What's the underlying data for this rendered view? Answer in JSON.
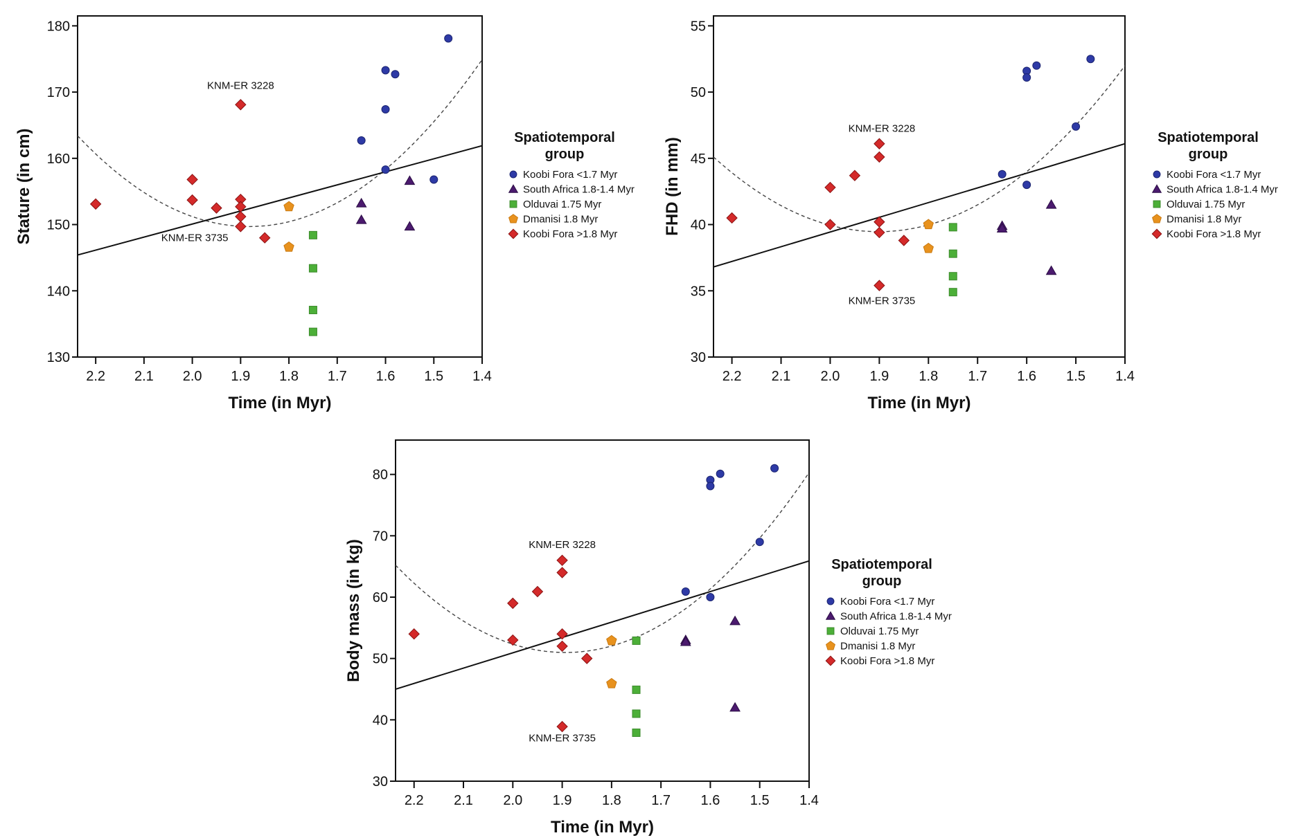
{
  "chart_data": [
    {
      "type": "scatter",
      "id": "stature",
      "title": "",
      "xlabel": "Time (in Myr)",
      "ylabel": "Stature (in cm)",
      "xlim": [
        2.2375,
        1.4
      ],
      "ylim": [
        130,
        181.5
      ],
      "x_reversed": true,
      "xticks": [
        2.2,
        2.1,
        2.0,
        1.9,
        1.8,
        1.7,
        1.6,
        1.5,
        1.4
      ],
      "xtick_labels": [
        "2.2",
        "2.1",
        "2.0",
        "1.9",
        "1.8",
        "1.7",
        "1.6",
        "1.5",
        "1.4"
      ],
      "yticks": [
        130,
        140,
        150,
        160,
        170,
        180
      ],
      "ytick_labels": [
        "130",
        "140",
        "150",
        "160",
        "170",
        "180"
      ],
      "grid": false,
      "legend": {
        "title_line1": "Spatiotemporal",
        "title_line2": "group",
        "placement": "right"
      },
      "series": [
        {
          "name": "Koobi Fora <1.7 Myr",
          "marker": "circle",
          "color": "#2e3aa6",
          "points": [
            [
              1.47,
              178.1
            ],
            [
              1.6,
              173.3
            ],
            [
              1.58,
              172.7
            ],
            [
              1.6,
              167.4
            ],
            [
              1.65,
              162.7
            ],
            [
              1.6,
              158.3
            ],
            [
              1.5,
              156.8
            ]
          ]
        },
        {
          "name": "South Africa 1.8-1.4 Myr",
          "marker": "triangle",
          "color": "#4b1a6e",
          "points": [
            [
              1.55,
              156.6
            ],
            [
              1.65,
              153.2
            ],
            [
              1.65,
              150.7
            ],
            [
              1.55,
              149.7
            ]
          ]
        },
        {
          "name": "Olduvai 1.75 Myr",
          "marker": "square",
          "color": "#4caf38",
          "points": [
            [
              1.75,
              148.4
            ],
            [
              1.75,
              143.4
            ],
            [
              1.75,
              137.1
            ],
            [
              1.75,
              133.8
            ]
          ]
        },
        {
          "name": "Dmanisi 1.8 Myr",
          "marker": "pentagon",
          "color": "#e8921e",
          "points": [
            [
              1.8,
              152.7
            ],
            [
              1.8,
              146.6
            ]
          ]
        },
        {
          "name": "Koobi Fora >1.8 Myr",
          "marker": "diamond",
          "color": "#d42a2a",
          "points": [
            [
              2.2,
              153.1
            ],
            [
              2.0,
              156.8
            ],
            [
              2.0,
              153.7
            ],
            [
              1.95,
              152.5
            ],
            [
              1.9,
              168.1
            ],
            [
              1.9,
              153.8
            ],
            [
              1.9,
              152.7
            ],
            [
              1.9,
              151.2
            ],
            [
              1.9,
              149.7
            ],
            [
              1.85,
              148.0
            ]
          ]
        }
      ],
      "linear_fit": {
        "x": [
          2.2375,
          1.4
        ],
        "y": [
          145.4,
          161.9
        ]
      },
      "quadratic_fit": {
        "x": [
          2.2375,
          1.88,
          1.4
        ],
        "y": [
          163.4,
          149.7,
          174.9
        ]
      },
      "annotations": [
        {
          "text": "KNM-ER 3228",
          "x": 1.9,
          "y": 170.5
        },
        {
          "text": "KNM-ER 3735",
          "x": 1.995,
          "y": 147.5
        }
      ]
    },
    {
      "type": "scatter",
      "id": "fhd",
      "title": "",
      "xlabel": "Time (in Myr)",
      "ylabel": "FHD (in mm)",
      "xlim": [
        2.2375,
        1.4
      ],
      "ylim": [
        30,
        55.75
      ],
      "x_reversed": true,
      "xticks": [
        2.2,
        2.1,
        2.0,
        1.9,
        1.8,
        1.7,
        1.6,
        1.5,
        1.4
      ],
      "xtick_labels": [
        "2.2",
        "2.1",
        "2.0",
        "1.9",
        "1.8",
        "1.7",
        "1.6",
        "1.5",
        "1.4"
      ],
      "yticks": [
        30,
        35,
        40,
        45,
        50,
        55
      ],
      "ytick_labels": [
        "30",
        "35",
        "40",
        "45",
        "50",
        "55"
      ],
      "grid": false,
      "legend": {
        "title_line1": "Spatiotemporal",
        "title_line2": "group",
        "placement": "right"
      },
      "series": [
        {
          "name": "Koobi Fora <1.7 Myr",
          "marker": "circle",
          "color": "#2e3aa6",
          "points": [
            [
              1.47,
              52.5
            ],
            [
              1.58,
              52.0
            ],
            [
              1.6,
              51.6
            ],
            [
              1.6,
              51.1
            ],
            [
              1.5,
              47.4
            ],
            [
              1.65,
              43.8
            ],
            [
              1.6,
              43.0
            ]
          ]
        },
        {
          "name": "South Africa 1.8-1.4 Myr",
          "marker": "triangle",
          "color": "#4b1a6e",
          "points": [
            [
              1.55,
              41.5
            ],
            [
              1.65,
              39.9
            ],
            [
              1.65,
              39.7
            ],
            [
              1.55,
              36.5
            ]
          ]
        },
        {
          "name": "Olduvai 1.75 Myr",
          "marker": "square",
          "color": "#4caf38",
          "points": [
            [
              1.75,
              39.8
            ],
            [
              1.75,
              37.8
            ],
            [
              1.75,
              36.1
            ],
            [
              1.75,
              34.9
            ]
          ]
        },
        {
          "name": "Dmanisi 1.8 Myr",
          "marker": "pentagon",
          "color": "#e8921e",
          "points": [
            [
              1.8,
              40.0
            ],
            [
              1.8,
              38.2
            ]
          ]
        },
        {
          "name": "Koobi Fora >1.8 Myr",
          "marker": "diamond",
          "color": "#d42a2a",
          "points": [
            [
              2.2,
              40.5
            ],
            [
              2.0,
              42.8
            ],
            [
              2.0,
              40.0
            ],
            [
              1.95,
              43.7
            ],
            [
              1.9,
              46.1
            ],
            [
              1.9,
              45.1
            ],
            [
              1.9,
              40.2
            ],
            [
              1.9,
              39.4
            ],
            [
              1.9,
              35.4
            ],
            [
              1.85,
              38.8
            ]
          ]
        }
      ],
      "linear_fit": {
        "x": [
          2.2375,
          1.4
        ],
        "y": [
          36.8,
          46.1
        ]
      },
      "quadratic_fit": {
        "x": [
          2.2375,
          1.875,
          1.4
        ],
        "y": [
          45.1,
          39.5,
          52.0
        ]
      },
      "annotations": [
        {
          "text": "KNM-ER 3228",
          "x": 1.895,
          "y": 47.0
        },
        {
          "text": "KNM-ER 3735",
          "x": 1.895,
          "y": 34.0
        }
      ]
    },
    {
      "type": "scatter",
      "id": "body-mass",
      "title": "",
      "xlabel": "Time (in Myr)",
      "ylabel": "Body mass (in kg)",
      "xlim": [
        2.2375,
        1.4
      ],
      "ylim": [
        30,
        85.6
      ],
      "x_reversed": true,
      "xticks": [
        2.2,
        2.1,
        2.0,
        1.9,
        1.8,
        1.7,
        1.6,
        1.5,
        1.4
      ],
      "xtick_labels": [
        "2.2",
        "2.1",
        "2.0",
        "1.9",
        "1.8",
        "1.7",
        "1.6",
        "1.5",
        "1.4"
      ],
      "yticks": [
        30,
        40,
        50,
        60,
        70,
        80
      ],
      "ytick_labels": [
        "30",
        "40",
        "50",
        "60",
        "70",
        "80"
      ],
      "grid": false,
      "legend": {
        "title_line1": "Spatiotemporal",
        "title_line2": "group",
        "placement": "right"
      },
      "series": [
        {
          "name": "Koobi Fora <1.7 Myr",
          "marker": "circle",
          "color": "#2e3aa6",
          "points": [
            [
              1.47,
              81.0
            ],
            [
              1.58,
              80.1
            ],
            [
              1.6,
              79.1
            ],
            [
              1.6,
              78.1
            ],
            [
              1.5,
              69.0
            ],
            [
              1.65,
              60.9
            ],
            [
              1.6,
              60.0
            ]
          ]
        },
        {
          "name": "South Africa 1.8-1.4 Myr",
          "marker": "triangle",
          "color": "#4b1a6e",
          "points": [
            [
              1.55,
              56.1
            ],
            [
              1.65,
              53.0
            ],
            [
              1.65,
              52.7
            ],
            [
              1.55,
              42.0
            ]
          ]
        },
        {
          "name": "Olduvai 1.75 Myr",
          "marker": "square",
          "color": "#4caf38",
          "points": [
            [
              1.75,
              52.9
            ],
            [
              1.75,
              44.9
            ],
            [
              1.75,
              41.0
            ],
            [
              1.75,
              37.9
            ]
          ]
        },
        {
          "name": "Dmanisi 1.8 Myr",
          "marker": "pentagon",
          "color": "#e8921e",
          "points": [
            [
              1.8,
              52.9
            ],
            [
              1.8,
              45.9
            ]
          ]
        },
        {
          "name": "Koobi Fora >1.8 Myr",
          "marker": "diamond",
          "color": "#d42a2a",
          "points": [
            [
              2.2,
              54.0
            ],
            [
              2.0,
              59.0
            ],
            [
              2.0,
              53.0
            ],
            [
              1.95,
              60.9
            ],
            [
              1.9,
              66.0
            ],
            [
              1.9,
              64.0
            ],
            [
              1.9,
              54.0
            ],
            [
              1.9,
              52.0
            ],
            [
              1.9,
              38.9
            ],
            [
              1.85,
              50.0
            ]
          ]
        }
      ],
      "linear_fit": {
        "x": [
          2.2375,
          1.4
        ],
        "y": [
          45.0,
          65.9
        ]
      },
      "quadratic_fit": {
        "x": [
          2.2375,
          1.88,
          1.4
        ],
        "y": [
          65.2,
          51.0,
          80.3
        ]
      },
      "annotations": [
        {
          "text": "KNM-ER 3228",
          "x": 1.9,
          "y": 68.0
        },
        {
          "text": "KNM-ER 3735",
          "x": 1.9,
          "y": 36.5
        }
      ]
    }
  ]
}
